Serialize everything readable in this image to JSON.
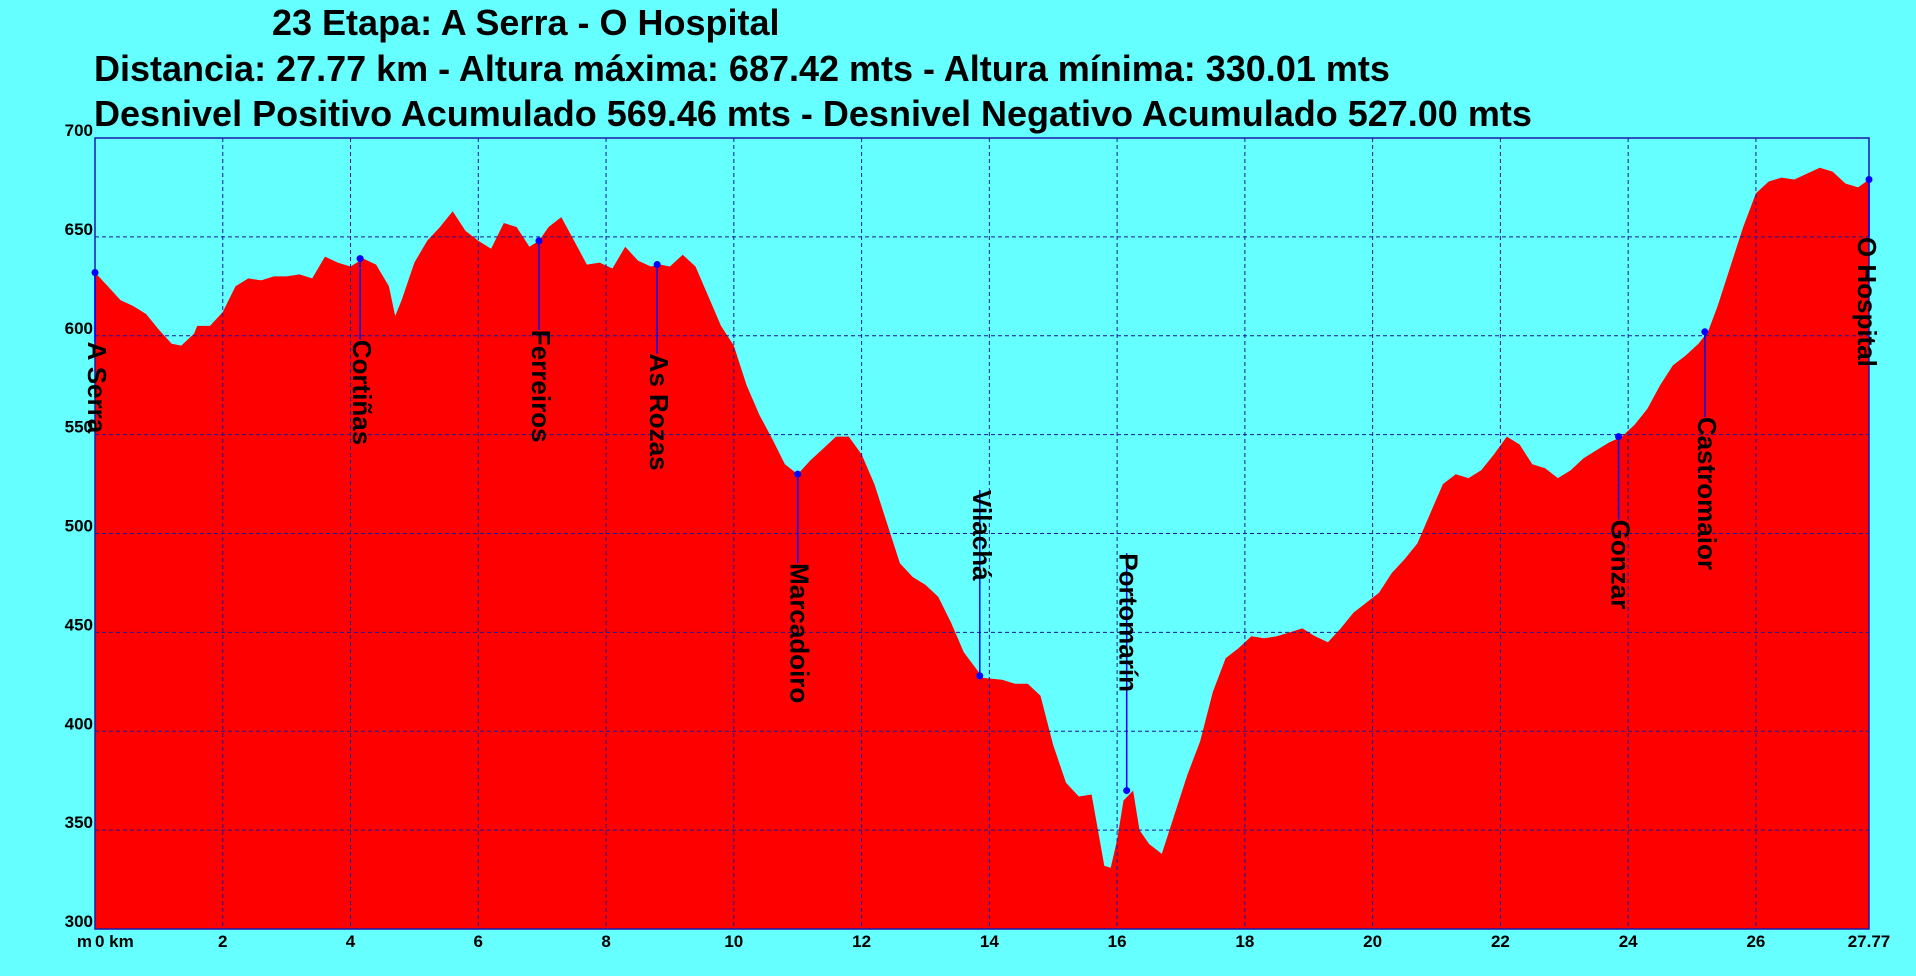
{
  "header": {
    "title": "23 Etapa: A Serra - O Hospital",
    "stats_line": "Distancia: 27.77 km - Altura máxima: 687.42 mts - Altura mínima: 330.01 mts",
    "desnivel_line": "Desnivel Positivo Acumulado 569.46 mts - Desnivel Negativo Acumulado 527.00 mts"
  },
  "chart_data": {
    "type": "area",
    "title": "23 Etapa: A Serra - O Hospital",
    "xlabel": "km",
    "ylabel": "m",
    "x_unit_label": "m",
    "xlim": [
      0,
      27.77
    ],
    "ylim": [
      300,
      700
    ],
    "x_ticks": [
      {
        "value": 0,
        "label": "0 km"
      },
      {
        "value": 2,
        "label": "2"
      },
      {
        "value": 4,
        "label": "4"
      },
      {
        "value": 6,
        "label": "6"
      },
      {
        "value": 8,
        "label": "8"
      },
      {
        "value": 10,
        "label": "10"
      },
      {
        "value": 12,
        "label": "12"
      },
      {
        "value": 14,
        "label": "14"
      },
      {
        "value": 16,
        "label": "16"
      },
      {
        "value": 18,
        "label": "18"
      },
      {
        "value": 20,
        "label": "20"
      },
      {
        "value": 22,
        "label": "22"
      },
      {
        "value": 24,
        "label": "24"
      },
      {
        "value": 26,
        "label": "26"
      },
      {
        "value": 27.77,
        "label": "27.77"
      }
    ],
    "y_ticks": [
      {
        "value": 300,
        "label": "300"
      },
      {
        "value": 350,
        "label": "350"
      },
      {
        "value": 400,
        "label": "400"
      },
      {
        "value": 450,
        "label": "450"
      },
      {
        "value": 500,
        "label": "500"
      },
      {
        "value": 550,
        "label": "550"
      },
      {
        "value": 600,
        "label": "600"
      },
      {
        "value": 650,
        "label": "650"
      },
      {
        "value": 700,
        "label": "700"
      }
    ],
    "grid": true,
    "fill_color": "#ff0000",
    "background_color": "#66ffff",
    "grid_color": "#1a1a99",
    "marker_color": "#0000ff",
    "distance_km": 27.77,
    "max_altitude_m": 687.42,
    "min_altitude_m": 330.01,
    "ascent_m": 569.46,
    "descent_m": 527.0,
    "profile": [
      [
        0.0,
        632
      ],
      [
        0.2,
        625
      ],
      [
        0.4,
        618
      ],
      [
        0.6,
        615
      ],
      [
        0.8,
        611
      ],
      [
        1.0,
        603
      ],
      [
        1.2,
        596
      ],
      [
        1.35,
        595
      ],
      [
        1.55,
        601
      ],
      [
        1.6,
        605
      ],
      [
        1.8,
        605
      ],
      [
        2.0,
        612
      ],
      [
        2.2,
        625
      ],
      [
        2.4,
        629
      ],
      [
        2.6,
        628
      ],
      [
        2.8,
        630
      ],
      [
        3.0,
        630
      ],
      [
        3.2,
        631
      ],
      [
        3.4,
        629
      ],
      [
        3.6,
        640
      ],
      [
        3.8,
        637
      ],
      [
        4.0,
        635
      ],
      [
        4.2,
        639
      ],
      [
        4.4,
        636
      ],
      [
        4.6,
        625
      ],
      [
        4.7,
        610
      ],
      [
        4.8,
        618
      ],
      [
        5.0,
        637
      ],
      [
        5.2,
        648
      ],
      [
        5.4,
        655
      ],
      [
        5.6,
        663
      ],
      [
        5.8,
        653
      ],
      [
        6.0,
        648
      ],
      [
        6.2,
        644
      ],
      [
        6.4,
        657
      ],
      [
        6.6,
        655
      ],
      [
        6.8,
        645
      ],
      [
        6.95,
        648
      ],
      [
        7.1,
        655
      ],
      [
        7.3,
        660
      ],
      [
        7.5,
        648
      ],
      [
        7.7,
        636
      ],
      [
        7.9,
        637
      ],
      [
        8.1,
        634
      ],
      [
        8.3,
        645
      ],
      [
        8.5,
        638
      ],
      [
        8.7,
        635
      ],
      [
        8.85,
        636
      ],
      [
        9.0,
        635
      ],
      [
        9.2,
        641
      ],
      [
        9.4,
        635
      ],
      [
        9.6,
        620
      ],
      [
        9.8,
        605
      ],
      [
        10.0,
        595
      ],
      [
        10.2,
        575
      ],
      [
        10.4,
        560
      ],
      [
        10.6,
        548
      ],
      [
        10.8,
        535
      ],
      [
        11.0,
        530
      ],
      [
        11.2,
        537
      ],
      [
        11.4,
        543
      ],
      [
        11.6,
        549
      ],
      [
        11.8,
        549
      ],
      [
        12.0,
        540
      ],
      [
        12.2,
        525
      ],
      [
        12.4,
        505
      ],
      [
        12.6,
        485
      ],
      [
        12.8,
        478
      ],
      [
        13.0,
        474
      ],
      [
        13.2,
        468
      ],
      [
        13.4,
        455
      ],
      [
        13.6,
        440
      ],
      [
        13.9,
        427
      ],
      [
        14.2,
        426
      ],
      [
        14.4,
        424
      ],
      [
        14.6,
        424
      ],
      [
        14.8,
        418
      ],
      [
        15.0,
        393
      ],
      [
        15.2,
        374
      ],
      [
        15.4,
        367
      ],
      [
        15.6,
        368
      ],
      [
        15.8,
        332
      ],
      [
        15.9,
        331
      ],
      [
        16.0,
        345
      ],
      [
        16.1,
        365
      ],
      [
        16.25,
        370
      ],
      [
        16.35,
        350
      ],
      [
        16.5,
        343
      ],
      [
        16.7,
        338
      ],
      [
        16.9,
        358
      ],
      [
        17.1,
        378
      ],
      [
        17.3,
        395
      ],
      [
        17.5,
        420
      ],
      [
        17.7,
        437
      ],
      [
        17.9,
        442
      ],
      [
        18.1,
        448
      ],
      [
        18.3,
        447
      ],
      [
        18.5,
        448
      ],
      [
        18.7,
        450
      ],
      [
        18.9,
        452
      ],
      [
        19.1,
        448
      ],
      [
        19.3,
        445
      ],
      [
        19.5,
        452
      ],
      [
        19.7,
        460
      ],
      [
        19.9,
        465
      ],
      [
        20.1,
        470
      ],
      [
        20.3,
        480
      ],
      [
        20.5,
        487
      ],
      [
        20.7,
        495
      ],
      [
        20.9,
        510
      ],
      [
        21.1,
        525
      ],
      [
        21.3,
        530
      ],
      [
        21.5,
        528
      ],
      [
        21.7,
        532
      ],
      [
        21.9,
        540
      ],
      [
        22.1,
        549
      ],
      [
        22.3,
        545
      ],
      [
        22.5,
        535
      ],
      [
        22.7,
        533
      ],
      [
        22.9,
        528
      ],
      [
        23.1,
        532
      ],
      [
        23.3,
        538
      ],
      [
        23.5,
        542
      ],
      [
        23.7,
        546
      ],
      [
        23.9,
        549
      ],
      [
        24.1,
        555
      ],
      [
        24.3,
        563
      ],
      [
        24.5,
        575
      ],
      [
        24.7,
        585
      ],
      [
        24.9,
        590
      ],
      [
        25.1,
        596
      ],
      [
        25.25,
        602
      ],
      [
        25.4,
        615
      ],
      [
        25.6,
        635
      ],
      [
        25.8,
        655
      ],
      [
        26.0,
        672
      ],
      [
        26.2,
        678
      ],
      [
        26.4,
        680
      ],
      [
        26.6,
        679
      ],
      [
        26.8,
        682
      ],
      [
        27.0,
        685
      ],
      [
        27.2,
        683
      ],
      [
        27.4,
        677
      ],
      [
        27.6,
        675
      ],
      [
        27.77,
        679
      ]
    ],
    "waypoints": [
      {
        "name": "A Serra",
        "km": 0.0,
        "alt": 632,
        "label_alt": 597
      },
      {
        "name": "Cortiñas",
        "km": 4.15,
        "alt": 639,
        "label_alt": 598
      },
      {
        "name": "Ferreiros",
        "km": 6.95,
        "alt": 648,
        "label_alt": 603
      },
      {
        "name": "As Rozas",
        "km": 8.8,
        "alt": 636,
        "label_alt": 591
      },
      {
        "name": "Marcadoiro",
        "km": 11.0,
        "alt": 530,
        "label_alt": 485
      },
      {
        "name": "Vilachá",
        "km": 13.85,
        "alt": 428,
        "label_alt": 522
      },
      {
        "name": "Portomarín",
        "km": 16.15,
        "alt": 370,
        "label_alt": 490
      },
      {
        "name": "Gonzar",
        "km": 23.85,
        "alt": 549,
        "label_alt": 507
      },
      {
        "name": "Castromaior",
        "km": 25.2,
        "alt": 602,
        "label_alt": 559
      },
      {
        "name": "O Hospital",
        "km": 27.77,
        "alt": 679,
        "label_alt": 650
      }
    ]
  }
}
